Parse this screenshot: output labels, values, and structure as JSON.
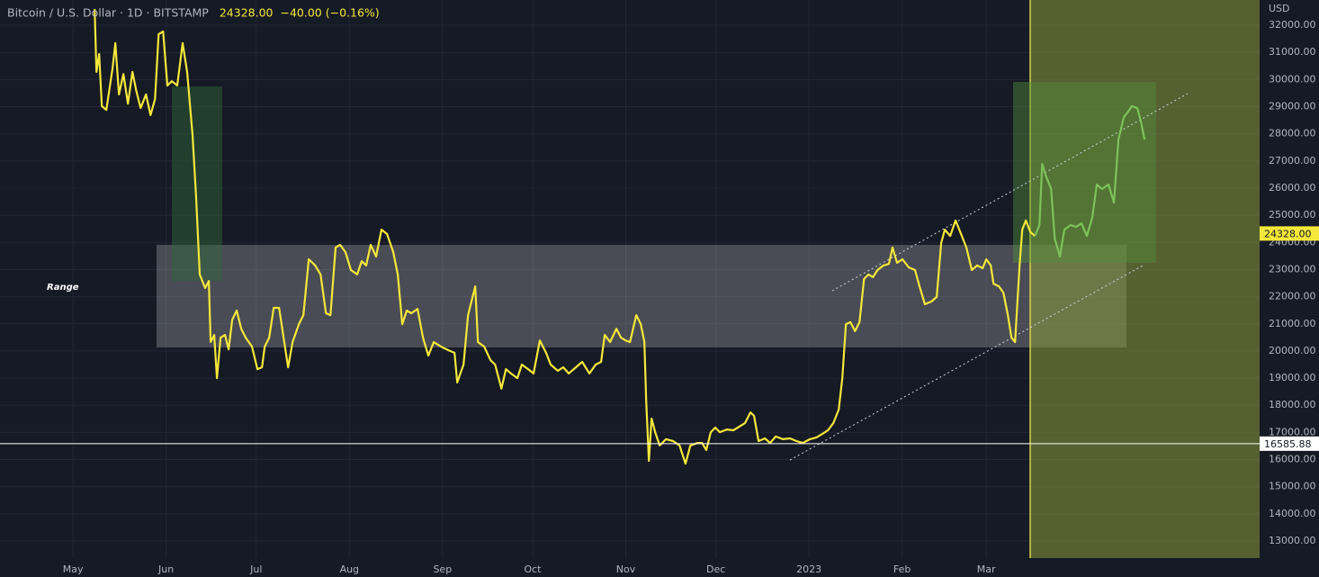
{
  "chart_data": {
    "type": "line",
    "title": "Bitcoin / U.S. Dollar · 1D · BITSTAMP",
    "last_price": {
      "value": 24328,
      "label": "24328.00"
    },
    "change": "−40.00 (−0.16%)",
    "y_axis_label": "USD",
    "annotation": "Range",
    "horizontal_line": 16585.88,
    "grid": true,
    "xlim": [
      -24.3,
      395
    ],
    "ylim": [
      12370,
      32930
    ],
    "xticks": [
      {
        "value": 0,
        "label": "May"
      },
      {
        "value": 31,
        "label": "Jun"
      },
      {
        "value": 61,
        "label": "Jul"
      },
      {
        "value": 92,
        "label": "Aug"
      },
      {
        "value": 123,
        "label": "Sep"
      },
      {
        "value": 153,
        "label": "Oct"
      },
      {
        "value": 184,
        "label": "Nov"
      },
      {
        "value": 214,
        "label": "Dec"
      },
      {
        "value": 245,
        "label": "2023"
      },
      {
        "value": 276,
        "label": "Feb"
      },
      {
        "value": 304,
        "label": "Mar"
      }
    ],
    "yticks": [
      {
        "value": 13000,
        "label": "13000.00"
      },
      {
        "value": 14000,
        "label": "14000.00"
      },
      {
        "value": 15000,
        "label": "15000.00"
      },
      {
        "value": 16000,
        "label": "16000.00"
      },
      {
        "value": 17000,
        "label": "17000.00"
      },
      {
        "value": 18000,
        "label": "18000.00"
      },
      {
        "value": 19000,
        "label": "19000.00"
      },
      {
        "value": 20000,
        "label": "20000.00"
      },
      {
        "value": 21000,
        "label": "21000.00"
      },
      {
        "value": 22000,
        "label": "22000.00"
      },
      {
        "value": 23000,
        "label": "23000.00"
      },
      {
        "value": 24000,
        "label": "24000.00"
      },
      {
        "value": 25000,
        "label": "25000.00"
      },
      {
        "value": 26000,
        "label": "26000.00"
      },
      {
        "value": 27000,
        "label": "27000.00"
      },
      {
        "value": 28000,
        "label": "28000.00"
      },
      {
        "value": 29000,
        "label": "29000.00"
      },
      {
        "value": 30000,
        "label": "30000.00"
      },
      {
        "value": 31000,
        "label": "31000.00"
      },
      {
        "value": 32000,
        "label": "32000.00"
      }
    ],
    "series": [
      {
        "color": "#f5e83a",
        "x": [
          7.2,
          7.8,
          8.7,
          9.6,
          11.1,
          13.2,
          14.1,
          15.3,
          16.8,
          18.3,
          19.8,
          21.0,
          22.5,
          24.3,
          25.8,
          27.3,
          28.5,
          30.0,
          31.4,
          32.9,
          34.7,
          36.5,
          38.0,
          39.8,
          41.0,
          42.2,
          44.0,
          45.2,
          45.8,
          47.0,
          47.9,
          49.1,
          50.6,
          51.8,
          53.0,
          54.5,
          56.0,
          57.5,
          59.6,
          61.4,
          62.9,
          63.8,
          65.3,
          66.8,
          68.6,
          70.1,
          71.6,
          73.1,
          75.2,
          76.7,
          78.5,
          80.6,
          82.4,
          84.2,
          85.7,
          87.4,
          88.9,
          90.7,
          92.5,
          94.6,
          96.1,
          97.6,
          99.1,
          100.9,
          102.7,
          104.5,
          106.6,
          108.1,
          109.6,
          111.1,
          112.6,
          114.7,
          116.5,
          118.3,
          120.1,
          122.5,
          125.5,
          127.0,
          127.9,
          130.0,
          131.5,
          133.9,
          134.8,
          136.9,
          139.0,
          140.5,
          142.6,
          144.1,
          145.8,
          147.9,
          149.4,
          151.5,
          153.3,
          155.4,
          157.5,
          159.0,
          161.4,
          163.2,
          165.0,
          167.4,
          169.5,
          171.9,
          174.0,
          175.8,
          177.0,
          178.8,
          180.9,
          182.4,
          183.9,
          185.4,
          187.5,
          189.0,
          190.2,
          190.8,
          191.7,
          192.6,
          193.8,
          195.3,
          197.4,
          199.8,
          201.9,
          203.9,
          205.5,
          207.9,
          209.4,
          210.8,
          212.3,
          213.8,
          215.3,
          217.7,
          219.8,
          221.3,
          223.7,
          225.5,
          226.7,
          228.2,
          230.3,
          232.1,
          233.9,
          236.3,
          238.7,
          240.8,
          242.9,
          245.3,
          247.4,
          249.5,
          251.3,
          253.1,
          254.9,
          256.1,
          257.3,
          258.8,
          260.3,
          261.8,
          263.3,
          264.8,
          266.3,
          267.8,
          269.8,
          271.6,
          272.8,
          274.3,
          276.1,
          278.2,
          280.3,
          281.8,
          283.6,
          285.7,
          287.5,
          289.0,
          290.2,
          292.0,
          293.8,
          295.6,
          297.4,
          299.2,
          301.0,
          302.8,
          304.0,
          305.5,
          306.4,
          308.2,
          309.7,
          311.2,
          312.4,
          313.6,
          315.1,
          316.0,
          317.2,
          318.7,
          320.2
        ],
        "values": [
          32600,
          30280,
          30940,
          29020,
          28880,
          30440,
          31340,
          29450,
          30200,
          29110,
          30280,
          29610,
          28950,
          29450,
          28690,
          29280,
          31670,
          31770,
          29780,
          29940,
          29780,
          31340,
          30280,
          27960,
          25640,
          22820,
          22320,
          22580,
          20330,
          20590,
          19000,
          20490,
          20590,
          20060,
          21150,
          21490,
          20820,
          20490,
          20160,
          19330,
          19400,
          20160,
          20490,
          21590,
          21590,
          20490,
          19400,
          20330,
          20990,
          21320,
          23380,
          23150,
          22820,
          21390,
          21320,
          23810,
          23910,
          23640,
          22980,
          22820,
          23310,
          23150,
          23910,
          23480,
          24470,
          24310,
          23640,
          22820,
          20990,
          21490,
          21390,
          21550,
          20490,
          19830,
          20330,
          20160,
          20000,
          19930,
          18840,
          19500,
          21320,
          22380,
          20330,
          20160,
          19660,
          19500,
          18610,
          19330,
          19170,
          19000,
          19500,
          19330,
          19170,
          20390,
          19930,
          19500,
          19270,
          19400,
          19170,
          19400,
          19600,
          19170,
          19500,
          19600,
          20590,
          20330,
          20820,
          20490,
          20390,
          20330,
          21320,
          20990,
          20330,
          18170,
          15950,
          17510,
          17010,
          16520,
          16750,
          16680,
          16520,
          15850,
          16520,
          16610,
          16610,
          16350,
          17010,
          17180,
          17010,
          17110,
          17080,
          17180,
          17340,
          17740,
          17610,
          16680,
          16780,
          16610,
          16850,
          16750,
          16780,
          16680,
          16610,
          16750,
          16810,
          16950,
          17080,
          17340,
          17840,
          19000,
          20990,
          21060,
          20730,
          21060,
          22650,
          22820,
          22720,
          22980,
          23150,
          23210,
          23810,
          23250,
          23380,
          23080,
          22980,
          22380,
          21720,
          21820,
          21990,
          23980,
          24470,
          24240,
          24810,
          24310,
          23810,
          22980,
          23150,
          23050,
          23380,
          23150,
          22480,
          22380,
          22150,
          21320,
          20490,
          20330,
          23150,
          24470,
          24810,
          24380,
          24240
        ]
      },
      {
        "color": "#7dc35a",
        "x": [
          320.2,
          321.7,
          322.6,
          323.8,
          325.6,
          326.8,
          328.5,
          330.0,
          332.1,
          333.9,
          335.7,
          337.5,
          339.3,
          340.8,
          342.5,
          344.7,
          346.5,
          348.0,
          349.8,
          351.0,
          352.5,
          354.3,
          355.5,
          356.7
        ],
        "values": [
          24240,
          24640,
          26890,
          26460,
          25970,
          24140,
          23480,
          24470,
          24640,
          24570,
          24700,
          24240,
          24910,
          26130,
          25970,
          26130,
          25470,
          27790,
          28620,
          28780,
          29020,
          28950,
          28450,
          27790
        ]
      }
    ]
  }
}
